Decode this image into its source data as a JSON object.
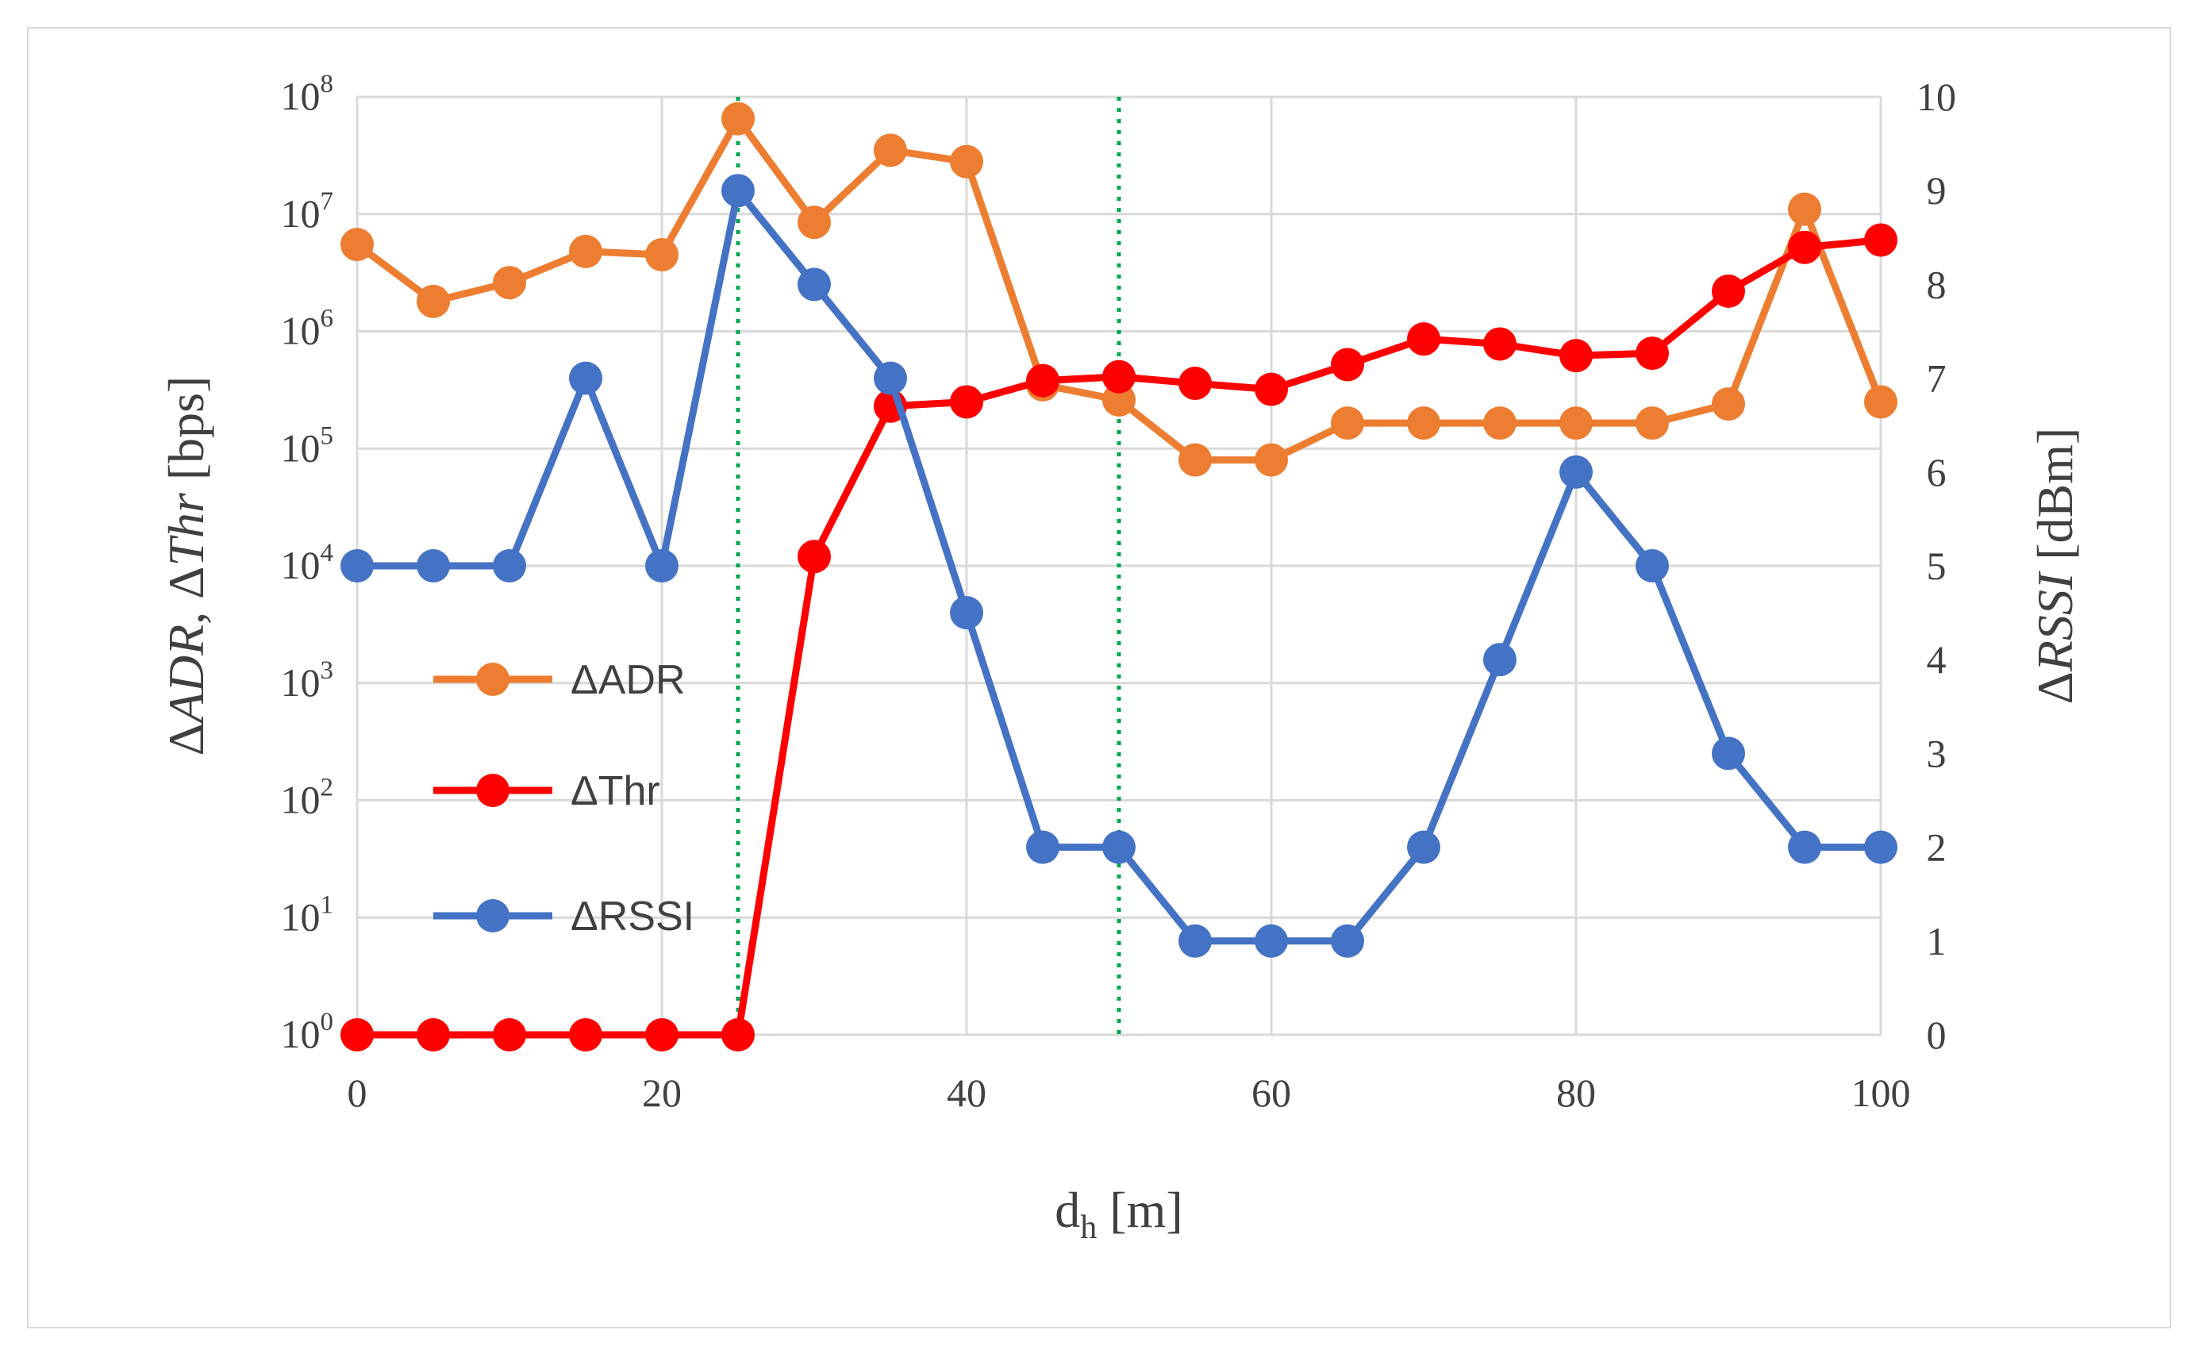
{
  "chart_data": {
    "type": "line",
    "title": "",
    "x": [
      0,
      5,
      10,
      15,
      20,
      25,
      30,
      35,
      40,
      45,
      50,
      55,
      60,
      65,
      70,
      75,
      80,
      85,
      90,
      95,
      100
    ],
    "xlim": [
      0,
      100
    ],
    "x_ticks": [
      0,
      20,
      40,
      60,
      80,
      100
    ],
    "x_tick_labels": [
      "0",
      "20",
      "40",
      "60",
      "80",
      "100"
    ],
    "xlabel": {
      "main": "d",
      "sub": "h",
      "unit": " [m]"
    },
    "ylabel_left": "ΔADR, ΔThr [bps]",
    "ylabel_left_parts": [
      "Δ",
      "ADR",
      ", Δ",
      "Thr",
      " [bps]"
    ],
    "ylim_left_log10": [
      0,
      8
    ],
    "y_left_ticks": [
      {
        "base": "10",
        "exp": "8"
      },
      {
        "base": "10",
        "exp": "7"
      },
      {
        "base": "10",
        "exp": "6"
      },
      {
        "base": "10",
        "exp": "5"
      },
      {
        "base": "10",
        "exp": "4"
      },
      {
        "base": "10",
        "exp": "3"
      },
      {
        "base": "10",
        "exp": "2"
      },
      {
        "base": "10",
        "exp": "1"
      },
      {
        "base": "10",
        "exp": "0"
      }
    ],
    "ylabel_right": "ΔRSSI [dBm]",
    "ylabel_right_parts": [
      "Δ",
      "RSSI",
      " [dBm]"
    ],
    "ylim_right": [
      0,
      10
    ],
    "y_right_ticks": [
      "10",
      "9",
      "8",
      "7",
      "6",
      "5",
      "4",
      "3",
      "2",
      "1",
      "0"
    ],
    "vlines": [
      25,
      50
    ],
    "grid": true,
    "legend_position": "middle-left",
    "series": [
      {
        "name": "ΔADR",
        "axis": "left",
        "scale": "log",
        "color": "#ED7D31",
        "values": [
          5500000,
          1800000,
          2600000,
          4800000,
          4500000,
          65000000,
          8500000,
          35000000,
          28000000,
          350000,
          260000,
          80000,
          80000,
          165000,
          165000,
          165000,
          165000,
          165000,
          240000,
          11000000,
          250000
        ]
      },
      {
        "name": "ΔThr",
        "axis": "left",
        "scale": "log",
        "color": "#FF0000",
        "values": [
          1,
          1,
          1,
          1,
          1,
          1,
          12000,
          230000,
          250000,
          380000,
          410000,
          360000,
          320000,
          520000,
          860000,
          780000,
          620000,
          650000,
          2200000,
          5200000,
          6000000
        ]
      },
      {
        "name": "ΔRSSI",
        "axis": "right",
        "scale": "linear",
        "color": "#4472C4",
        "values": [
          5,
          5,
          5,
          7,
          5,
          9,
          8,
          7,
          4.5,
          2,
          2,
          1,
          1,
          1,
          2,
          4,
          6,
          5,
          3,
          2,
          2
        ]
      }
    ]
  }
}
